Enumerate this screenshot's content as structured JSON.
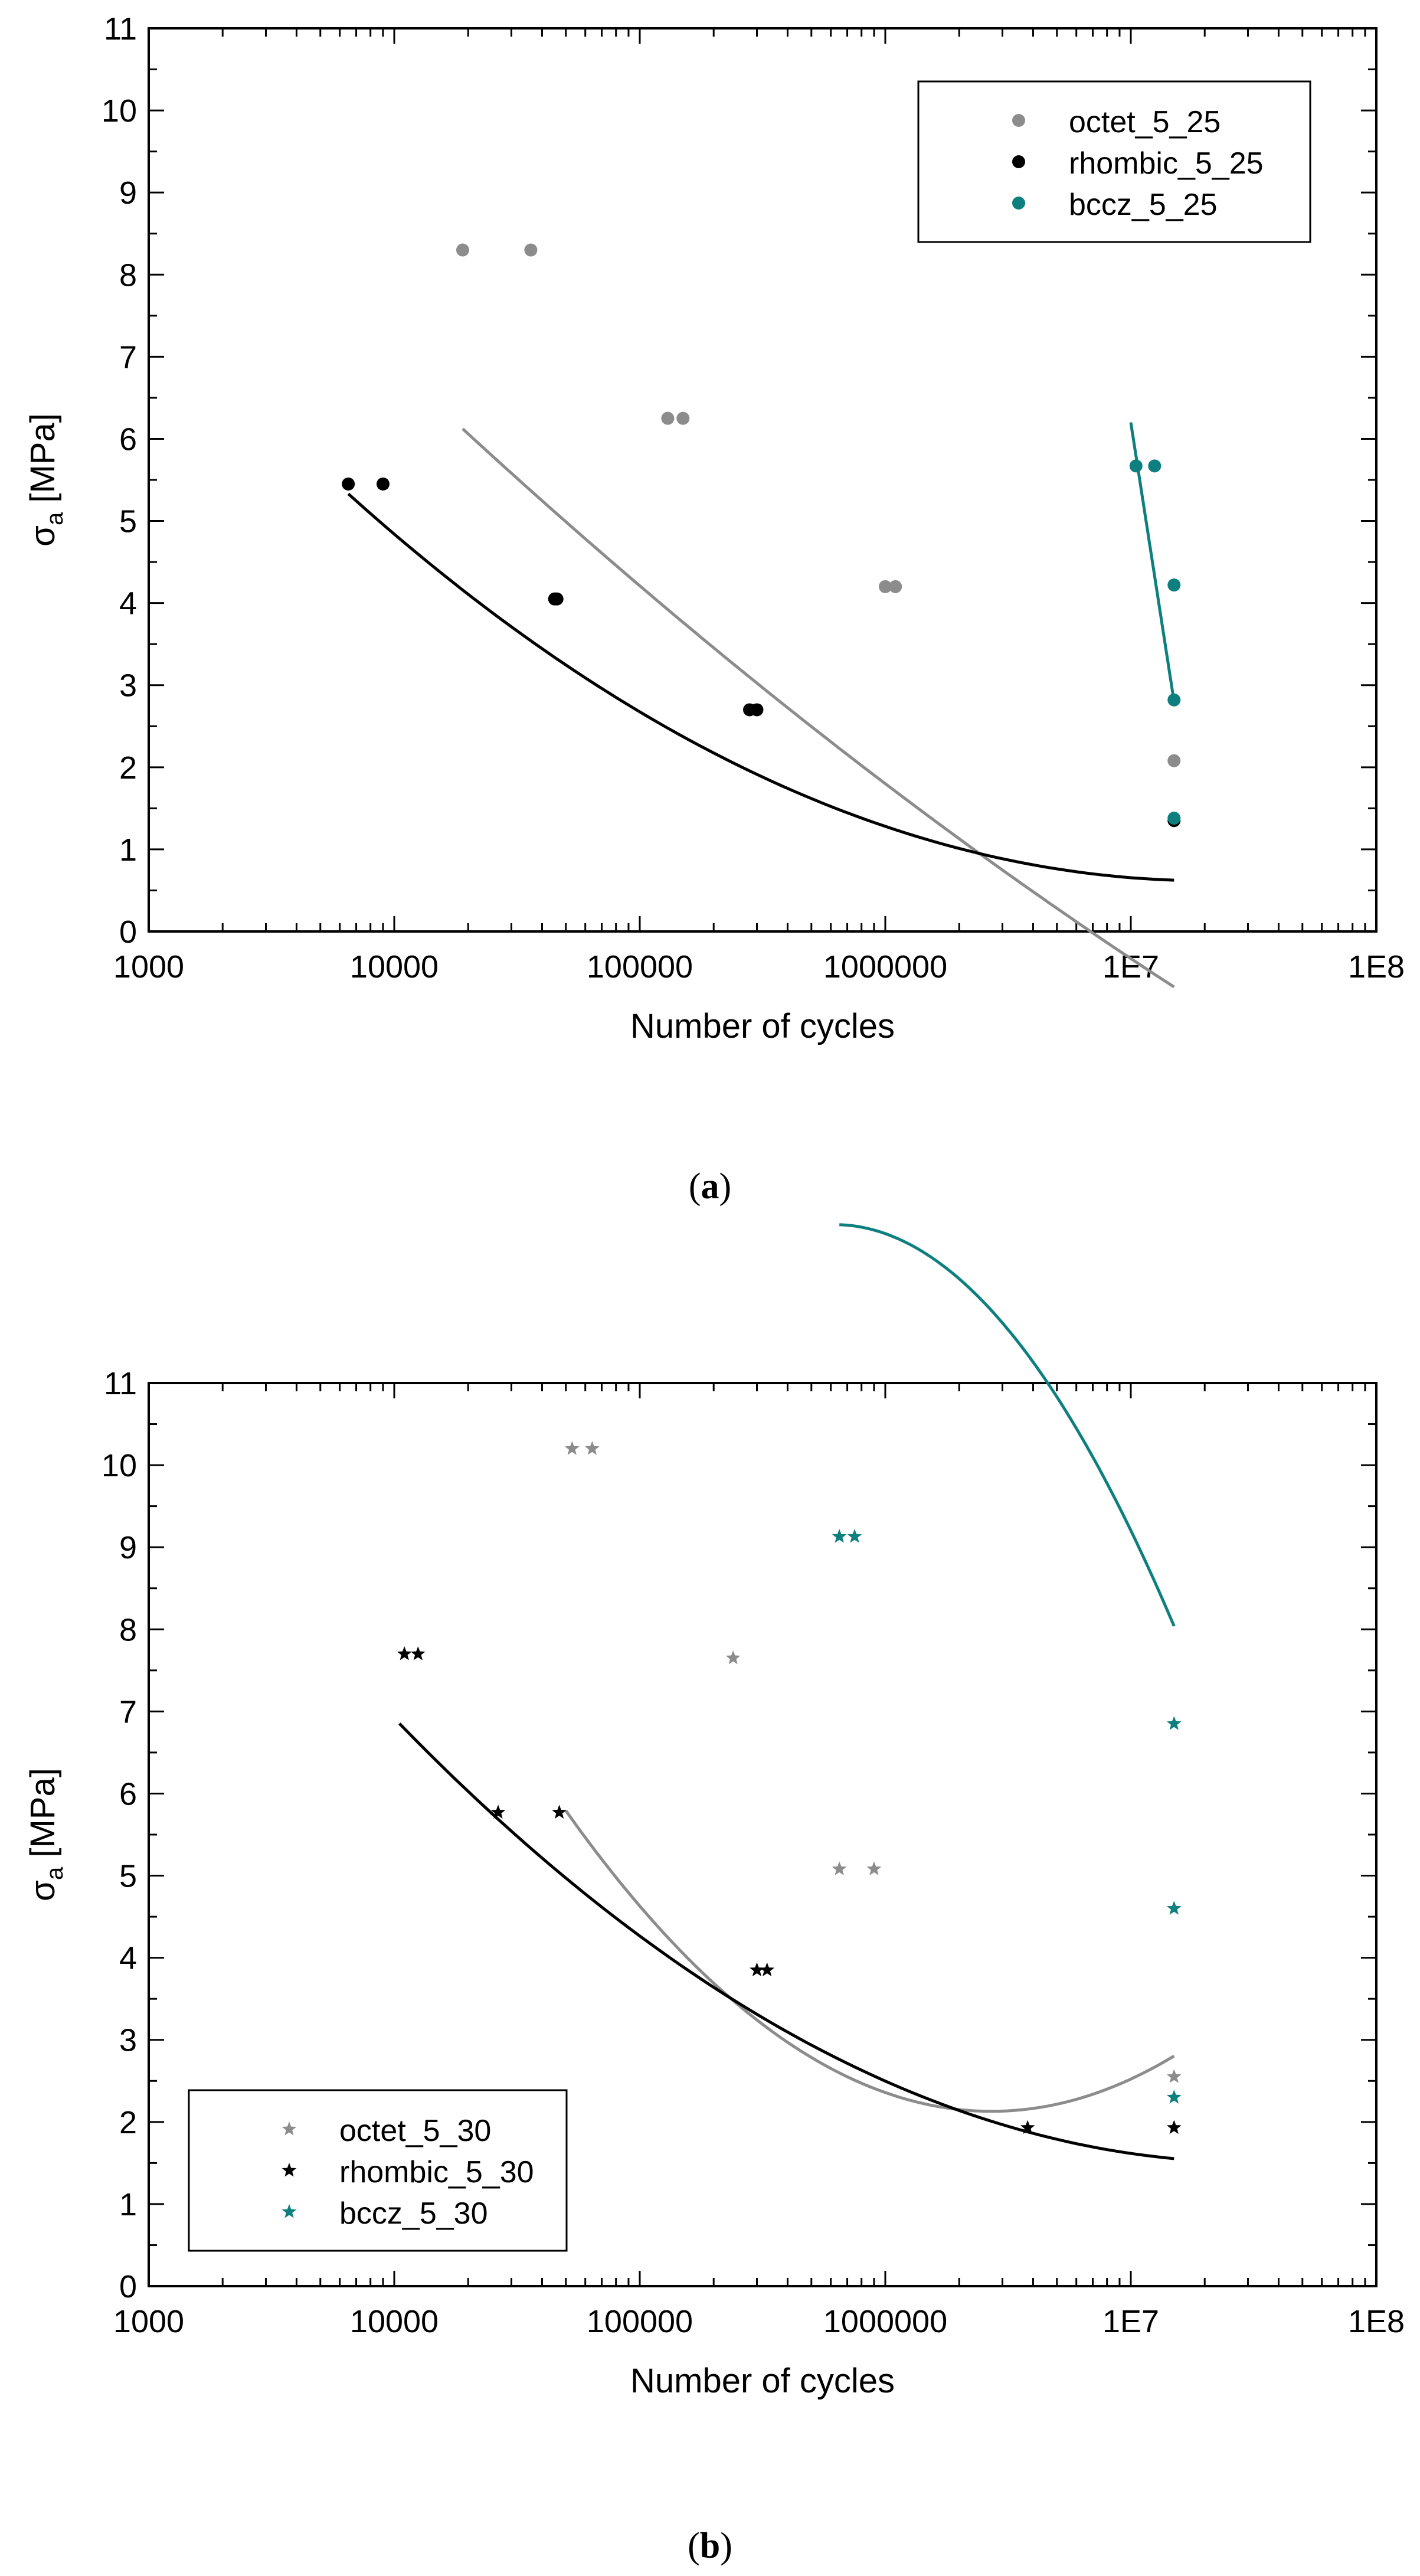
{
  "chart_data": [
    {
      "type": "scatter",
      "panel": "a",
      "caption_letter": "a",
      "xscale": "log",
      "xlim": [
        1000,
        100000000
      ],
      "ylim": [
        0,
        11
      ],
      "xticks": [
        1000,
        10000,
        100000,
        1000000,
        10000000,
        100000000
      ],
      "xtick_labels": [
        "1000",
        "10000",
        "100000",
        "1000000",
        "1E7",
        "1E8"
      ],
      "yticks": [
        0,
        1,
        2,
        3,
        4,
        5,
        6,
        7,
        8,
        9,
        10,
        11
      ],
      "ytick_labels": [
        "0",
        "1",
        "2",
        "3",
        "4",
        "5",
        "6",
        "7",
        "8",
        "9",
        "10",
        "11"
      ],
      "xlabel": "Number of cycles",
      "ylabel": {
        "main": "σ",
        "sub": "a",
        "unit": " [MPa]"
      },
      "legend_position": "top-right",
      "marker": "circle",
      "series": [
        {
          "name": "octet_5_25",
          "color": "#8c8c8c",
          "x": [
            19000,
            36000,
            130000,
            150000,
            1000000,
            1100000,
            15000000
          ],
          "y": [
            8.3,
            8.3,
            6.25,
            6.25,
            4.2,
            4.2,
            2.08
          ],
          "fit": {
            "x": [
              19000,
              15000000
            ],
            "coef": [
              20.46,
              -3.95,
              0.14
            ]
          }
        },
        {
          "name": "rhombic_5_25",
          "color": "#000000",
          "x": [
            6500,
            9000,
            45000,
            46000,
            280000,
            300000,
            15000000
          ],
          "y": [
            5.45,
            5.45,
            4.05,
            4.05,
            2.7,
            2.7,
            1.35
          ],
          "fit": {
            "x": [
              6500,
              15000000
            ],
            "coef": [
              21.2,
              -5.63,
              0.385
            ]
          }
        },
        {
          "name": "bccz_5_25",
          "color": "#0e7f7f",
          "x": [
            10500000,
            12500000,
            15000000,
            15000000,
            15000000
          ],
          "y": [
            5.67,
            5.67,
            4.22,
            2.82,
            1.38
          ],
          "fit": {
            "x": [
              10000000,
              15000000
            ],
            "endpoints": [
              6.2,
              2.8
            ]
          }
        }
      ]
    },
    {
      "type": "scatter",
      "panel": "b",
      "caption_letter": "b",
      "xscale": "log",
      "xlim": [
        1000,
        100000000
      ],
      "ylim": [
        0,
        11
      ],
      "xticks": [
        1000,
        10000,
        100000,
        1000000,
        10000000,
        100000000
      ],
      "xtick_labels": [
        "1000",
        "10000",
        "100000",
        "1000000",
        "1E7",
        "1E8"
      ],
      "yticks": [
        0,
        1,
        2,
        3,
        4,
        5,
        6,
        7,
        8,
        9,
        10,
        11
      ],
      "ytick_labels": [
        "0",
        "1",
        "2",
        "3",
        "4",
        "5",
        "6",
        "7",
        "8",
        "9",
        "10",
        "11"
      ],
      "xlabel": "Number of cycles",
      "ylabel": {
        "main": "σ",
        "sub": "a",
        "unit": " [MPa]"
      },
      "legend_position": "bottom-left",
      "marker": "star",
      "series": [
        {
          "name": "octet_5_30",
          "color": "#8c8c8c",
          "x": [
            53000,
            64000,
            240000,
            650000,
            900000,
            15000000
          ],
          "y": [
            10.2,
            10.2,
            7.65,
            5.08,
            5.08,
            2.55
          ],
          "fit": {
            "x": [
              50000,
              15000000
            ],
            "coef": [
              52.53,
              -15.67,
              1.218
            ]
          }
        },
        {
          "name": "rhombic_5_30",
          "color": "#000000",
          "x": [
            11000,
            12500,
            26500,
            47000,
            300000,
            330000,
            3800000,
            15000000
          ],
          "y": [
            7.7,
            7.7,
            5.77,
            5.77,
            3.85,
            3.85,
            1.93,
            1.93
          ],
          "fit": {
            "x": [
              10500,
              15000000
            ],
            "coef": [
              26.39,
              -6.64,
              0.443
            ]
          }
        },
        {
          "name": "bccz_5_30",
          "color": "#0e7f7f",
          "x": [
            650000,
            750000,
            15000000,
            15000000,
            15000000
          ],
          "y": [
            9.13,
            9.13,
            6.85,
            4.6,
            2.3
          ],
          "fit": {
            "x": [
              650000,
              15000000
            ],
            "coef": [
              -72.8,
              29.6,
              -2.555
            ]
          }
        }
      ]
    }
  ]
}
